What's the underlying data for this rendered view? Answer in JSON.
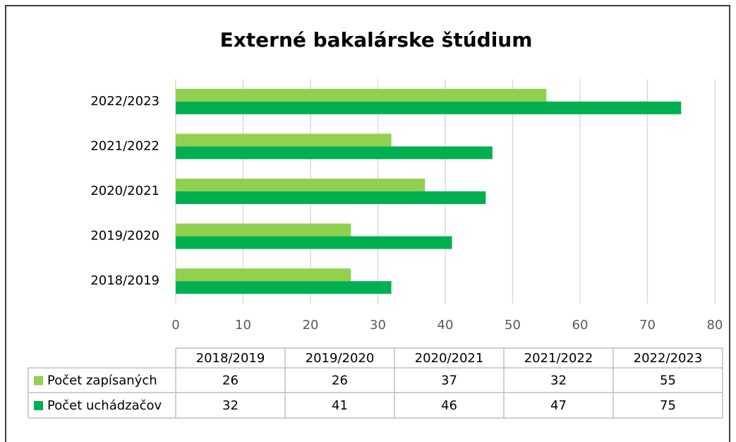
{
  "chart_data": {
    "type": "bar",
    "orientation": "horizontal",
    "title": "Externé bakalárske štúdium",
    "categories": [
      "2018/2019",
      "2019/2020",
      "2020/2021",
      "2021/2022",
      "2022/2023"
    ],
    "series": [
      {
        "name": "Počet zapísaných",
        "color": "#92d050",
        "values": [
          26,
          26,
          37,
          32,
          55
        ]
      },
      {
        "name": "Počet uchádzačov",
        "color": "#00b050",
        "values": [
          32,
          41,
          46,
          47,
          75
        ]
      }
    ],
    "xlim": [
      0,
      80
    ],
    "xticks": [
      0,
      10,
      20,
      30,
      40,
      50,
      60,
      70,
      80
    ],
    "grid": true,
    "data_table": true
  }
}
